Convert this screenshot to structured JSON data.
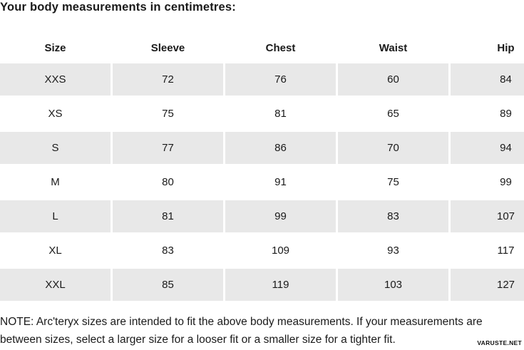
{
  "title": "Your body measurements in centimetres:",
  "table": {
    "columns": [
      "Size",
      "Sleeve",
      "Chest",
      "Waist",
      "Hip"
    ],
    "rows": [
      [
        "XXS",
        "72",
        "76",
        "60",
        "84"
      ],
      [
        "XS",
        "75",
        "81",
        "65",
        "89"
      ],
      [
        "S",
        "77",
        "86",
        "70",
        "94"
      ],
      [
        "M",
        "80",
        "91",
        "75",
        "99"
      ],
      [
        "L",
        "81",
        "99",
        "83",
        "107"
      ],
      [
        "XL",
        "83",
        "109",
        "93",
        "117"
      ],
      [
        "XXL",
        "85",
        "119",
        "103",
        "127"
      ]
    ],
    "shaded_row_indexes": [
      0,
      2,
      4,
      6
    ]
  },
  "note_lines": [
    "NOTE: Arc'teryx sizes are intended to fit the above body measurements. If your measurements are",
    "between sizes, select a larger size for a looser fit or a smaller size for a tighter fit."
  ],
  "watermark": "VARUSTE.NET",
  "colors": {
    "row_shade": "#e8e8e8",
    "text": "#1a1a1a"
  }
}
